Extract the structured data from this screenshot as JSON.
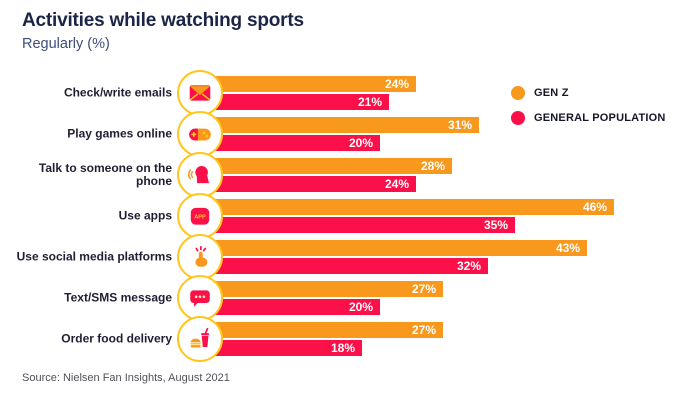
{
  "title": "Activities while watching sports",
  "subtitle": "Regularly (%)",
  "source": "Source: Nielsen Fan Insights, August 2021",
  "colors": {
    "gen_z": "#F8981D",
    "general_population": "#FB1049",
    "icon_circle_border": "#FFC61E",
    "title_text": "#1B2547",
    "subtitle_text": "#3E4E7A",
    "bar_value_text": "#FFFFFF"
  },
  "legend": [
    {
      "label": "GEN Z",
      "color": "#F8981D"
    },
    {
      "label": "GENERAL POPULATION",
      "color": "#FB1049"
    }
  ],
  "chart_data": {
    "type": "bar",
    "orientation": "horizontal",
    "title": "Activities while watching sports",
    "subtitle": "Regularly (%)",
    "value_suffix": "%",
    "xlim": [
      0,
      50
    ],
    "grid": false,
    "legend_position": "top-right",
    "categories": [
      "Check/write emails",
      "Play games online",
      "Talk to someone on the phone",
      "Use apps",
      "Use social media platforms",
      "Text/SMS message",
      "Order food delivery"
    ],
    "icons": [
      "email",
      "gamepad",
      "phone-talk",
      "app-square",
      "tap-hand",
      "sms-bubble",
      "food-delivery"
    ],
    "series": [
      {
        "name": "GEN Z",
        "values": [
          24,
          31,
          28,
          46,
          43,
          27,
          27
        ]
      },
      {
        "name": "GENERAL POPULATION",
        "values": [
          21,
          20,
          24,
          35,
          32,
          20,
          18
        ]
      }
    ]
  }
}
